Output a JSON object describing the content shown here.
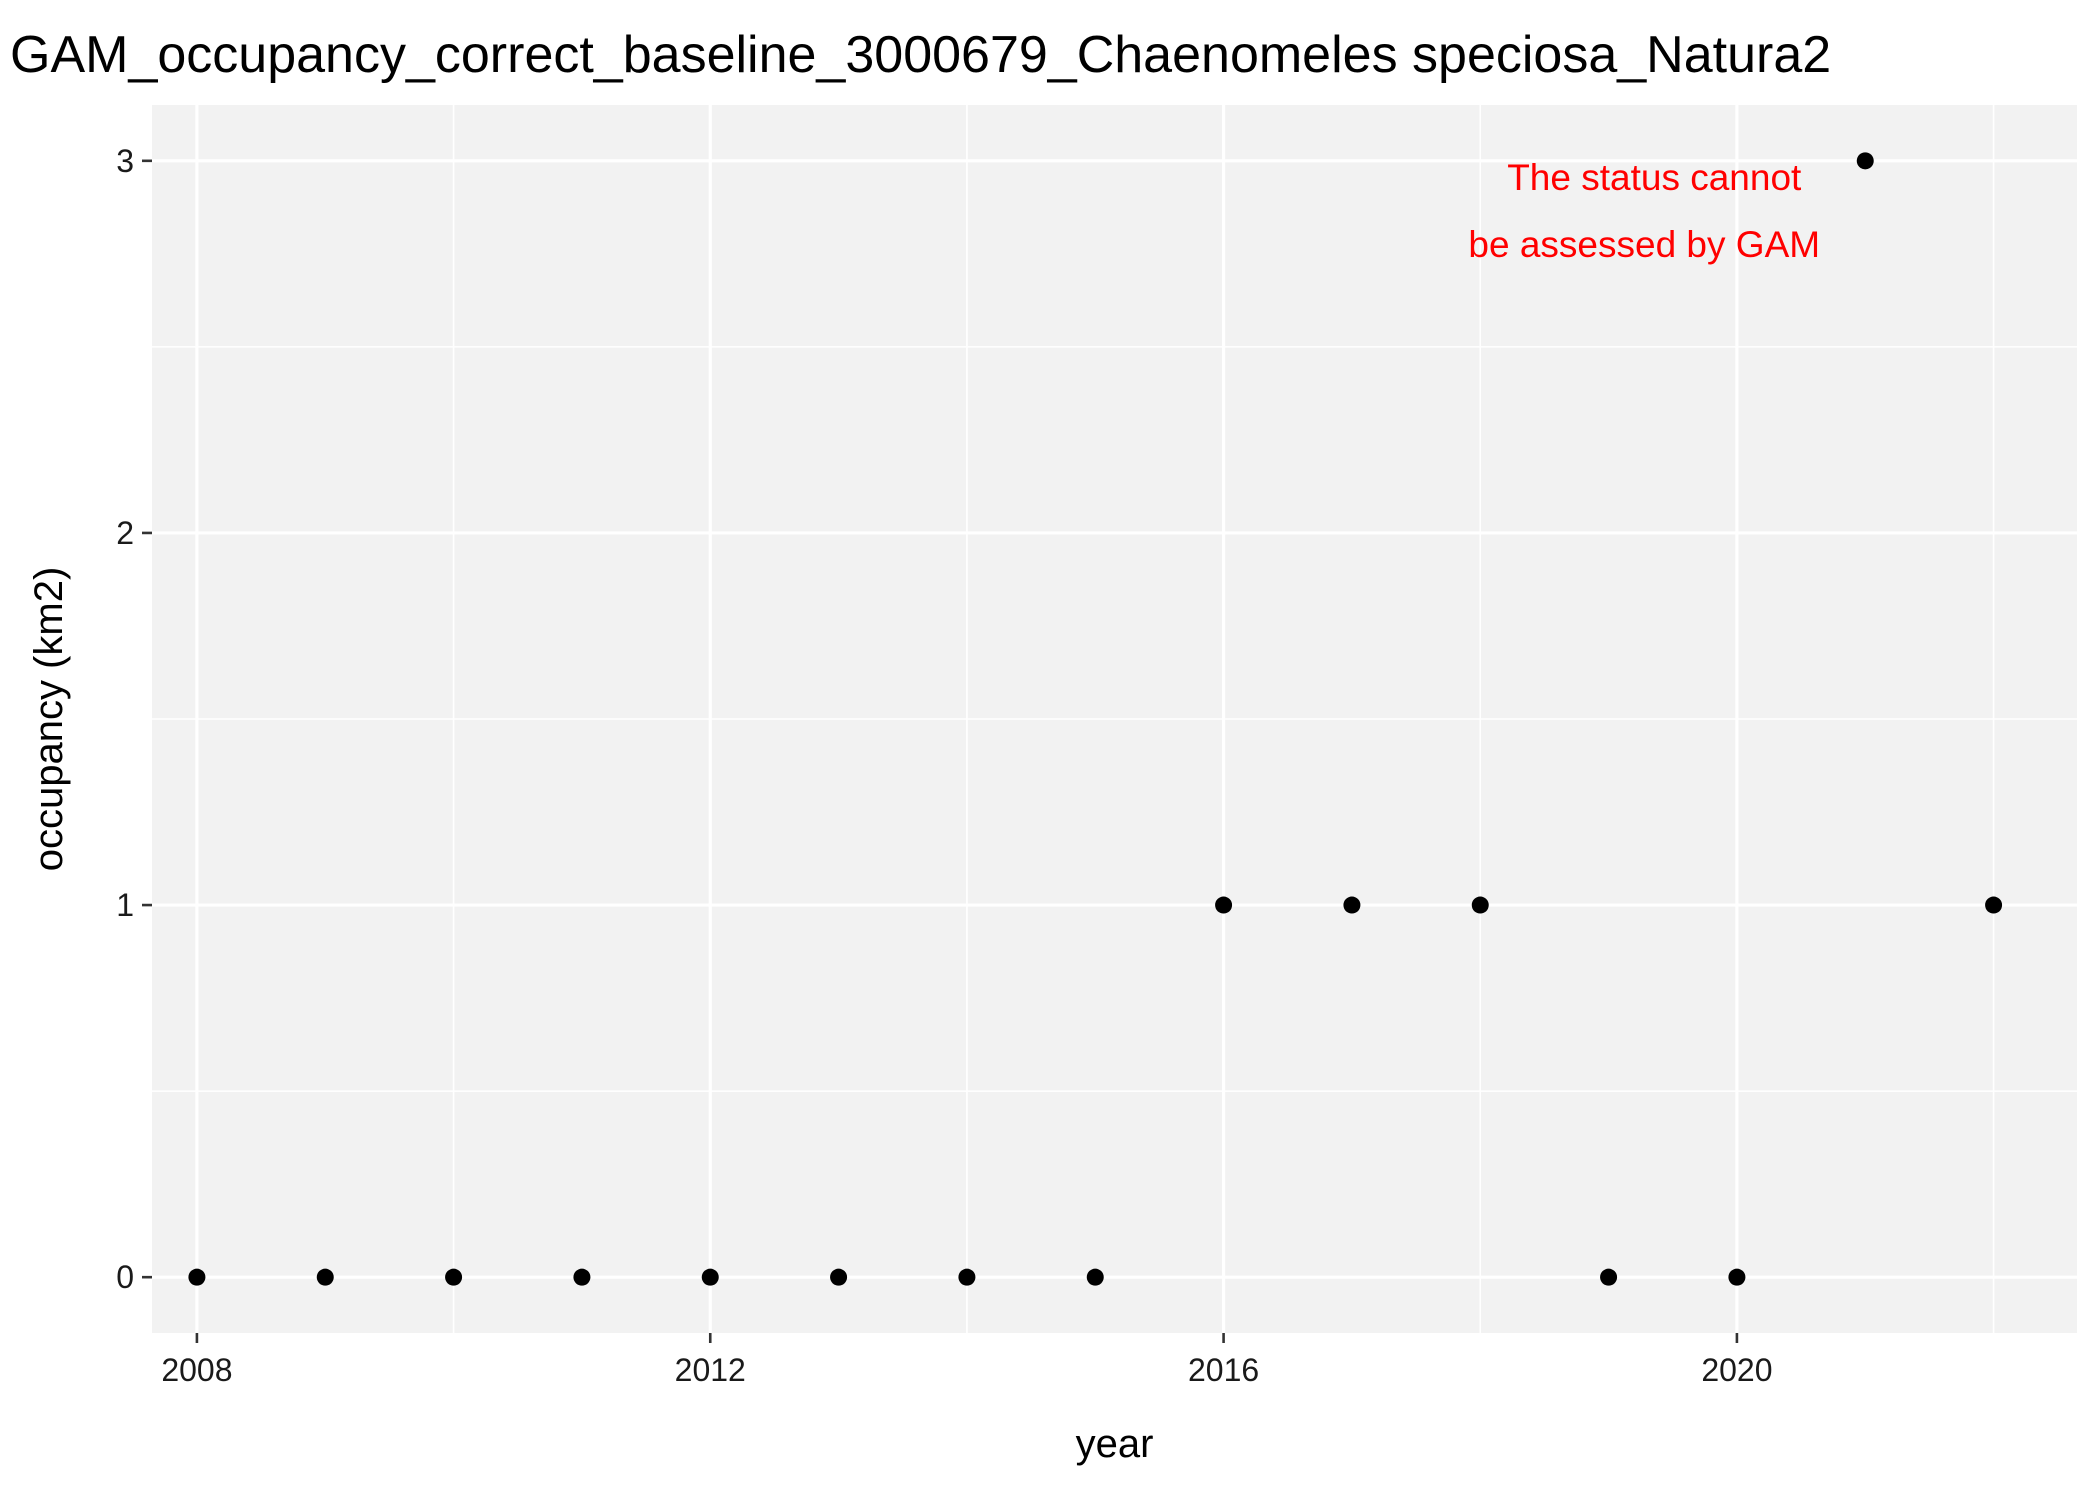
{
  "chart_data": {
    "type": "scatter",
    "title": "GAM_occupancy_correct_baseline_3000679_Chaenomeles speciosa_Natura2",
    "xlabel": "year",
    "ylabel": "occupancy (km2)",
    "xlim": [
      2007.65,
      2022.65
    ],
    "ylim": [
      -0.15,
      3.15
    ],
    "x_ticks": [
      2008,
      2012,
      2016,
      2020
    ],
    "x_tick_labels": [
      "2008",
      "2012",
      "2016",
      "2020"
    ],
    "x_minor_ticks": [
      2010,
      2014,
      2018,
      2022
    ],
    "y_ticks": [
      0,
      1,
      2,
      3
    ],
    "y_tick_labels": [
      "0",
      "1",
      "2",
      "3"
    ],
    "y_minor_ticks": [
      0.5,
      1.5,
      2.5
    ],
    "grid": true,
    "legend": "none",
    "panel_color": "#f2f2f2",
    "grid_color": "#ffffff",
    "point_color": "#000000",
    "points": [
      {
        "x": 2008,
        "y": 0
      },
      {
        "x": 2009,
        "y": 0
      },
      {
        "x": 2010,
        "y": 0
      },
      {
        "x": 2011,
        "y": 0
      },
      {
        "x": 2012,
        "y": 0
      },
      {
        "x": 2013,
        "y": 0
      },
      {
        "x": 2014,
        "y": 0
      },
      {
        "x": 2015,
        "y": 0
      },
      {
        "x": 2016,
        "y": 1
      },
      {
        "x": 2017,
        "y": 1
      },
      {
        "x": 2018,
        "y": 1
      },
      {
        "x": 2019,
        "y": 0
      },
      {
        "x": 2020,
        "y": 0
      },
      {
        "x": 2021,
        "y": 3
      },
      {
        "x": 2022,
        "y": 1
      }
    ],
    "annotation": {
      "lines": [
        "The status cannot",
        "be assessed by GAM"
      ],
      "color": "#ff0000"
    }
  }
}
